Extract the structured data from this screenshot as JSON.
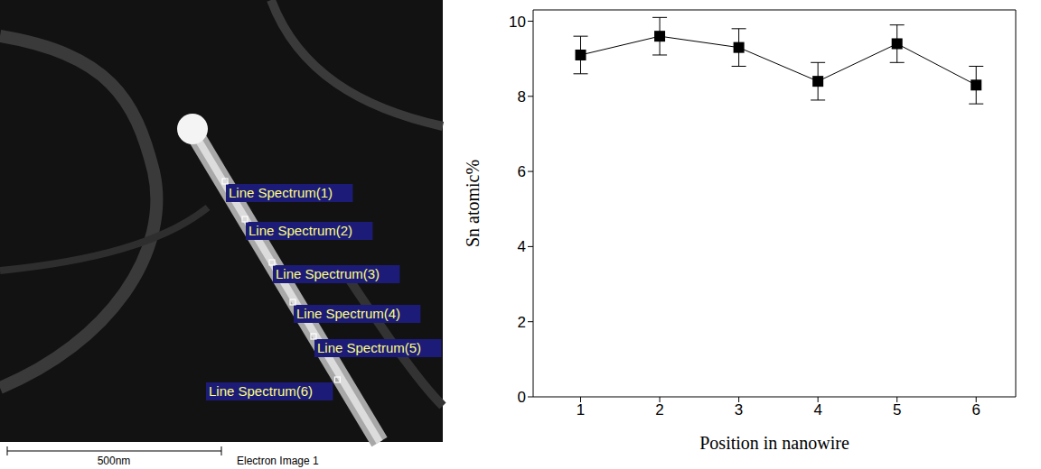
{
  "image": {
    "labels": [
      "Line Spectrum(1)",
      "Line Spectrum(2)",
      "Line Spectrum(3)",
      "Line Spectrum(4)",
      "Line Spectrum(5)",
      "Line Spectrum(6)"
    ],
    "scale_bar": "500nm",
    "caption": "Electron Image 1"
  },
  "chart_data": {
    "type": "line",
    "x": [
      1,
      2,
      3,
      4,
      5,
      6
    ],
    "values": [
      9.1,
      9.6,
      9.3,
      8.4,
      9.4,
      8.3
    ],
    "errors": [
      0.5,
      0.5,
      0.5,
      0.5,
      0.5,
      0.5
    ],
    "xlim": [
      0.4,
      6.5
    ],
    "xticks": [
      1,
      2,
      3,
      4,
      5,
      6
    ],
    "ylim": [
      0,
      10.3
    ],
    "yticks": [
      0,
      2,
      4,
      6,
      8,
      10
    ],
    "x_label": "Position in nanowire",
    "y_label": "Sn atomic%",
    "color": "#000000",
    "marker": "square"
  }
}
